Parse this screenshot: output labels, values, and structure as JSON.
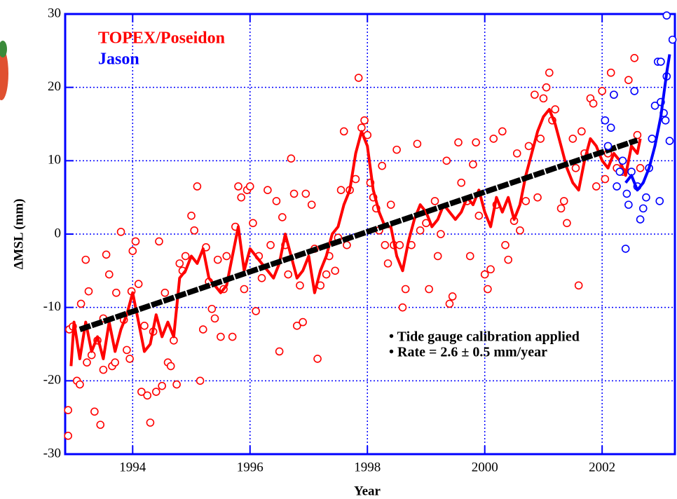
{
  "chart_data": {
    "type": "scatter",
    "xlabel": "Year",
    "ylabel": "ΔMSL (mm)",
    "xlim": [
      1992.85,
      2003.24
    ],
    "ylim": [
      -30,
      30
    ],
    "xticks": [
      1994,
      1996,
      1998,
      2000,
      2002
    ],
    "yticks": [
      -30,
      -20,
      -10,
      0,
      10,
      20,
      30
    ],
    "grid": true,
    "legend": "upper left",
    "annotations": [
      "• Tide gauge calibration applied",
      "• Rate = 2.6 ± 0.5 mm/year"
    ],
    "series": [
      {
        "name": "TOPEX/Poseidon",
        "color": "#ff0000",
        "style": "markers",
        "x": [
          1992.9,
          1992.9,
          1992.92,
          1992.98,
          1993.05,
          1993.1,
          1993.12,
          1993.2,
          1993.25,
          1993.22,
          1993.3,
          1993.35,
          1993.4,
          1993.45,
          1993.5,
          1993.5,
          1993.55,
          1993.6,
          1993.65,
          1993.7,
          1993.72,
          1993.8,
          1993.85,
          1993.9,
          1993.95,
          1993.98,
          1994.0,
          1994.05,
          1994.1,
          1994.15,
          1994.2,
          1994.25,
          1994.3,
          1994.35,
          1994.4,
          1994.45,
          1994.5,
          1994.55,
          1994.6,
          1994.65,
          1994.7,
          1994.75,
          1994.8,
          1994.85,
          1994.9,
          1995.0,
          1995.05,
          1995.1,
          1995.15,
          1995.2,
          1995.25,
          1995.3,
          1995.35,
          1995.4,
          1995.45,
          1995.5,
          1995.55,
          1995.6,
          1995.7,
          1995.75,
          1995.8,
          1995.85,
          1995.9,
          1995.95,
          1996.0,
          1996.05,
          1996.1,
          1996.15,
          1996.2,
          1996.3,
          1996.35,
          1996.45,
          1996.5,
          1996.55,
          1996.6,
          1996.65,
          1996.7,
          1996.75,
          1996.8,
          1996.85,
          1996.9,
          1996.95,
          1997.05,
          1997.1,
          1997.15,
          1997.2,
          1997.3,
          1997.35,
          1997.45,
          1997.5,
          1997.55,
          1997.6,
          1997.65,
          1997.7,
          1997.8,
          1997.85,
          1997.9,
          1997.95,
          1998.0,
          1998.05,
          1998.1,
          1998.15,
          1998.2,
          1998.25,
          1998.3,
          1998.35,
          1998.4,
          1998.45,
          1998.5,
          1998.55,
          1998.6,
          1998.65,
          1998.75,
          1998.85,
          1998.9,
          1999.0,
          1999.05,
          1999.15,
          1999.2,
          1999.25,
          1999.35,
          1999.4,
          1999.45,
          1999.55,
          1999.6,
          1999.7,
          1999.75,
          1999.8,
          1999.85,
          1999.9,
          2000.0,
          2000.05,
          2000.1,
          2000.15,
          2000.2,
          2000.3,
          2000.35,
          2000.4,
          2000.5,
          2000.55,
          2000.6,
          2000.7,
          2000.75,
          2000.85,
          2000.9,
          2000.95,
          2001.0,
          2001.05,
          2001.1,
          2001.15,
          2001.2,
          2001.3,
          2001.35,
          2001.4,
          2001.5,
          2001.55,
          2001.6,
          2001.65,
          2001.7,
          2001.8,
          2001.85,
          2001.9,
          2002.0,
          2002.05,
          2002.1,
          2002.15,
          2002.2,
          2002.25,
          2002.35,
          2002.45,
          2002.55,
          2002.6,
          2002.65
        ],
        "values": [
          -27.5,
          -24,
          -13,
          -12.6,
          -20,
          -20.5,
          -9.5,
          -3.5,
          -7.8,
          -17.5,
          -16.5,
          -24.2,
          -14.5,
          -26,
          -18.5,
          -11.5,
          -2.8,
          -5.5,
          -18,
          -17.5,
          -8,
          0.3,
          -11.7,
          -15.8,
          -17,
          -7.8,
          -2.3,
          -1,
          -6.8,
          -21.5,
          -12.5,
          -22,
          -25.7,
          -13.3,
          -21.5,
          -1,
          -20.7,
          -8,
          -17.5,
          -18,
          -14.5,
          -20.5,
          -4,
          -5,
          -3,
          2.5,
          0.5,
          6.5,
          -20,
          -13,
          -1.8,
          -6.5,
          -10.2,
          -11.5,
          -3.5,
          -14,
          -7.5,
          -3,
          -14,
          1,
          6.5,
          5,
          -7.5,
          6,
          6.5,
          1.5,
          -10.5,
          -3,
          -6,
          6,
          -1.5,
          4.5,
          -16,
          2.3,
          -1.5,
          -5.5,
          10.3,
          5.5,
          -12.5,
          -7,
          -12,
          5.5,
          4,
          -2,
          -17,
          -7,
          -5.5,
          -3,
          -5,
          -0.5,
          6,
          14,
          -1.5,
          6,
          7.5,
          21.3,
          14.5,
          15.5,
          13.5,
          7,
          5,
          3.5,
          0.5,
          9.3,
          -1.5,
          -4,
          4,
          -1.5,
          11.5,
          -1.5,
          -10,
          -7.5,
          -1.5,
          12.3,
          0.5,
          1.5,
          -7.5,
          4.5,
          -3,
          0,
          10,
          -9.5,
          -8.5,
          12.5,
          7,
          4.5,
          -3,
          9.5,
          12.5,
          2.5,
          -5.5,
          -7.5,
          -4.8,
          13,
          4,
          14,
          -1.5,
          -3.5,
          1.8,
          11,
          0.5,
          4.5,
          12,
          19,
          5,
          13,
          18.5,
          20,
          22,
          15.5,
          17,
          3.5,
          4.5,
          1.5,
          13,
          9,
          -7,
          14,
          11,
          18.5,
          17.8,
          6.5,
          19.5,
          7.5,
          11,
          22,
          19,
          9,
          8.5,
          21,
          24,
          13.5,
          9
        ]
      },
      {
        "color": "#ff0000",
        "style": "line",
        "width": 4,
        "x": [
          1992.95,
          1993.0,
          1993.1,
          1993.2,
          1993.3,
          1993.4,
          1993.5,
          1993.6,
          1993.7,
          1993.8,
          1993.9,
          1994.0,
          1994.1,
          1994.2,
          1994.3,
          1994.4,
          1994.5,
          1994.6,
          1994.7,
          1994.8,
          1994.9,
          1995.0,
          1995.1,
          1995.2,
          1995.3,
          1995.4,
          1995.5,
          1995.6,
          1995.7,
          1995.8,
          1995.9,
          1996.0,
          1996.1,
          1996.2,
          1996.3,
          1996.4,
          1996.5,
          1996.6,
          1996.7,
          1996.8,
          1996.9,
          1997.0,
          1997.1,
          1997.2,
          1997.3,
          1997.4,
          1997.5,
          1997.6,
          1997.7,
          1997.8,
          1997.9,
          1998.0,
          1998.1,
          1998.2,
          1998.3,
          1998.4,
          1998.5,
          1998.6,
          1998.7,
          1998.8,
          1998.9,
          1999.0,
          1999.1,
          1999.2,
          1999.3,
          1999.4,
          1999.5,
          1999.6,
          1999.7,
          1999.8,
          1999.9,
          2000.0,
          2000.1,
          2000.2,
          2000.3,
          2000.4,
          2000.5,
          2000.6,
          2000.7,
          2000.8,
          2000.9,
          2001.0,
          2001.1,
          2001.2,
          2001.3,
          2001.4,
          2001.5,
          2001.6,
          2001.7,
          2001.8,
          2001.9,
          2002.0,
          2002.1,
          2002.2,
          2002.3,
          2002.4,
          2002.5,
          2002.6,
          2002.65
        ],
        "values": [
          -18,
          -12,
          -17,
          -12,
          -16,
          -14,
          -17,
          -12,
          -16,
          -13,
          -11,
          -8,
          -12,
          -16,
          -15,
          -11,
          -14,
          -12,
          -14,
          -6,
          -5,
          -3,
          -4,
          -2,
          -6,
          -7,
          -8,
          -7,
          -3,
          1,
          -5,
          -2,
          -3,
          -4,
          -5,
          -6,
          -4,
          0,
          -3,
          -6,
          -5,
          -3,
          -8,
          -5,
          -3,
          0,
          1,
          4,
          6,
          11,
          14,
          12,
          6,
          3,
          1,
          1,
          -3,
          -5,
          -1,
          2,
          4,
          3,
          1,
          2,
          4,
          3,
          2,
          3,
          5,
          4,
          6,
          3,
          1,
          5,
          3,
          5,
          2,
          4,
          8,
          11,
          14,
          16,
          17,
          15,
          12,
          9,
          7,
          6,
          10,
          13,
          12,
          10,
          9,
          11,
          10,
          8,
          12,
          11,
          13
        ]
      },
      {
        "color": "#000000",
        "style": "line",
        "width": 8,
        "dash": "16 2",
        "x": [
          1993.1,
          2002.6
        ],
        "values": [
          -13,
          12.8
        ]
      },
      {
        "name": "Jason",
        "color": "#0000ff",
        "style": "markers",
        "x": [
          2002.05,
          2002.1,
          2002.15,
          2002.2,
          2002.25,
          2002.3,
          2002.35,
          2002.4,
          2002.42,
          2002.45,
          2002.5,
          2002.55,
          2002.6,
          2002.65,
          2002.7,
          2002.75,
          2002.8,
          2002.85,
          2002.9,
          2002.95,
          2002.98,
          2003.0,
          2003.05,
          2003.08,
          2003.1,
          2003.15,
          2003.2,
          2003.1,
          2003.0
        ],
        "values": [
          15.5,
          12,
          14.5,
          19,
          6.5,
          8.5,
          10,
          -2,
          5.5,
          4,
          8.5,
          19.5,
          6.5,
          2,
          3.5,
          5,
          9,
          13,
          17.5,
          23.5,
          4.5,
          18,
          16.5,
          15.5,
          21.5,
          12.7,
          26.5,
          29.8,
          23.5
        ]
      },
      {
        "color": "#0000ff",
        "style": "line",
        "width": 4,
        "x": [
          2002.4,
          2002.5,
          2002.6,
          2002.7,
          2002.8,
          2002.9,
          2003.0,
          2003.1,
          2003.15
        ],
        "values": [
          7,
          8,
          6,
          7,
          9,
          12,
          16,
          22,
          24.5
        ]
      }
    ]
  }
}
